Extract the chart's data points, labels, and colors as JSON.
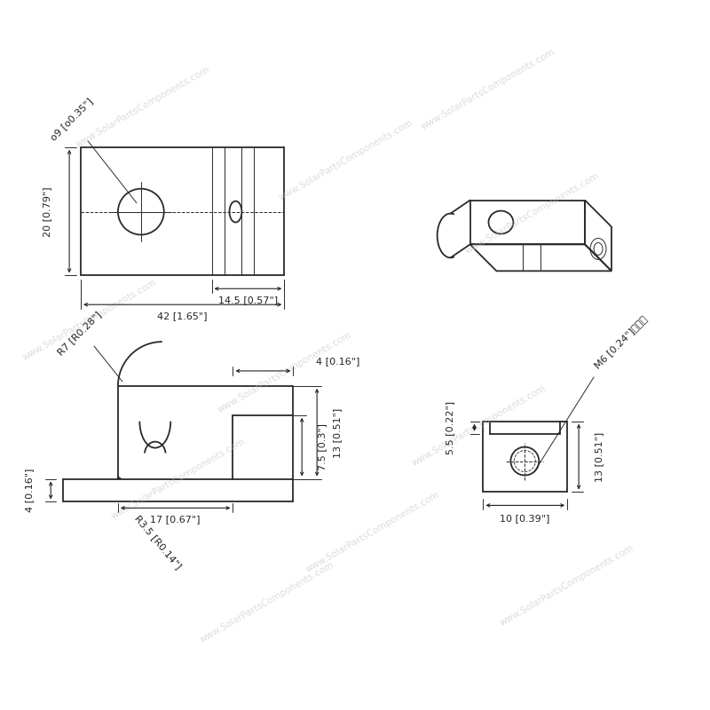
{
  "bg_color": "#ffffff",
  "line_color": "#2a2a2a",
  "watermark_color": "#c0c0c0",
  "watermark_text": "www.SolarPartsComponents.com",
  "dim_color": "#222222",
  "fig_width": 8.0,
  "fig_height": 8.0,
  "dpi": 100,
  "labels": {
    "dim_20": "20 [0.79\"]",
    "dim_145": "14.5 [0.57\"]",
    "dim_42": "42 [1.65\"]",
    "dim_hole": "o9 [o0.35\"]",
    "dim_R7": "R7 [R0.28\"]",
    "dim_4top": "4 [0.16\"]",
    "dim_17": "17 [0.67\"]",
    "dim_R35": "R3.5 [R0.14\"]",
    "dim_75": "7.5 [0.3\"]",
    "dim_13": "13 [0.51\"]",
    "dim_4bot": "4 [0.16\"]",
    "dim_55": "5.5 [0.22\"]",
    "dim_M6": "M6 [0.24\"]螺纹孔",
    "dim_13e": "13 [0.51\"]",
    "dim_10": "10 [0.39\"]"
  }
}
